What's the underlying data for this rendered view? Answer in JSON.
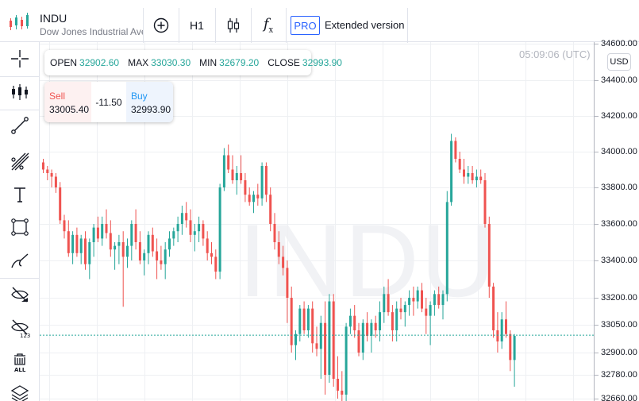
{
  "header": {
    "symbol": "INDU",
    "name": "Dow Jones Industrial Average",
    "timeframe": "H1",
    "pro_badge": "PRO",
    "extended_label": "Extended version",
    "fx_label": "f",
    "fx_sub": "x"
  },
  "ohlc": {
    "open_label": "OPEN",
    "open": "32902.60",
    "max_label": "MAX",
    "max": "33030.30",
    "min_label": "MIN",
    "min": "32679.20",
    "close_label": "CLOSE",
    "close": "32993.90"
  },
  "trade": {
    "sell_label": "Sell",
    "sell_price": "33005.40",
    "spread": "-11.50",
    "buy_label": "Buy",
    "buy_price": "32993.90"
  },
  "clock": "05:09:06 (UTC)",
  "currency": "USD",
  "watermark": "INDU",
  "colors": {
    "up": "#26a69a",
    "down": "#ef5350",
    "accent": "#2962ff"
  },
  "left_tools": [
    "crosshair-icon",
    "indicators-icon",
    "trend-line-icon",
    "fib-icon",
    "text-icon",
    "rectangle-icon",
    "brush-icon",
    "hide-drawings-icon",
    "hide-indicators-icon",
    "delete-all-icon",
    "layers-icon"
  ],
  "chart_data": {
    "type": "candlestick",
    "y_ticks": [
      34600,
      34400,
      34200,
      34000,
      33800,
      33600,
      33400,
      33200,
      33050,
      32900,
      32780,
      32660
    ],
    "y_tick_labels": [
      "34600.00",
      "34400.00",
      "34200.00",
      "34000.00",
      "33800.00",
      "33600.00",
      "33400.00",
      "33200.00",
      "33050.00",
      "32900.00",
      "32780.00",
      "32660.00"
    ],
    "current_price": 32993.9,
    "candles": [
      [
        33940,
        33960,
        33880,
        33900
      ],
      [
        33900,
        33920,
        33840,
        33880
      ],
      [
        33880,
        33900,
        33800,
        33860
      ],
      [
        33860,
        33880,
        33770,
        33800
      ],
      [
        33800,
        33830,
        33600,
        33620
      ],
      [
        33620,
        33650,
        33520,
        33560
      ],
      [
        33560,
        33620,
        33420,
        33440
      ],
      [
        33440,
        33560,
        33380,
        33540
      ],
      [
        33540,
        33580,
        33420,
        33440
      ],
      [
        33440,
        33540,
        33380,
        33520
      ],
      [
        33520,
        33560,
        33350,
        33380
      ],
      [
        33380,
        33520,
        33300,
        33500
      ],
      [
        33500,
        33600,
        33420,
        33580
      ],
      [
        33580,
        33640,
        33500,
        33520
      ],
      [
        33520,
        33640,
        33480,
        33600
      ],
      [
        33600,
        33680,
        33520,
        33550
      ],
      [
        33550,
        33620,
        33420,
        33460
      ],
      [
        33460,
        33500,
        33350,
        33480
      ],
      [
        33480,
        33540,
        33380,
        33500
      ],
      [
        33500,
        33560,
        33150,
        33420
      ],
      [
        33420,
        33520,
        33360,
        33480
      ],
      [
        33480,
        33620,
        33400,
        33600
      ],
      [
        33600,
        33680,
        33460,
        33500
      ],
      [
        33500,
        33560,
        33380,
        33400
      ],
      [
        33400,
        33460,
        33320,
        33440
      ],
      [
        33440,
        33560,
        33380,
        33540
      ],
      [
        33540,
        33580,
        33420,
        33450
      ],
      [
        33450,
        33520,
        33300,
        33400
      ],
      [
        33400,
        33480,
        33350,
        33380
      ],
      [
        33380,
        33500,
        33300,
        33460
      ],
      [
        33460,
        33560,
        33420,
        33520
      ],
      [
        33520,
        33580,
        33480,
        33560
      ],
      [
        33560,
        33640,
        33500,
        33600
      ],
      [
        33600,
        33700,
        33540,
        33660
      ],
      [
        33660,
        33720,
        33580,
        33620
      ],
      [
        33620,
        33680,
        33500,
        33540
      ],
      [
        33540,
        33600,
        33450,
        33560
      ],
      [
        33560,
        33640,
        33500,
        33600
      ],
      [
        33600,
        33620,
        33480,
        33520
      ],
      [
        33520,
        33560,
        33400,
        33440
      ],
      [
        33440,
        33500,
        33380,
        33420
      ],
      [
        33420,
        33460,
        33300,
        33340
      ],
      [
        33340,
        33820,
        33300,
        33800
      ],
      [
        33800,
        34020,
        33780,
        33980
      ],
      [
        33980,
        34040,
        33880,
        33900
      ],
      [
        33900,
        33980,
        33820,
        33840
      ],
      [
        33840,
        33920,
        33760,
        33880
      ],
      [
        33880,
        33980,
        33820,
        33840
      ],
      [
        33840,
        33880,
        33720,
        33760
      ],
      [
        33760,
        33800,
        33700,
        33720
      ],
      [
        33720,
        33780,
        33660,
        33760
      ],
      [
        33760,
        33820,
        33700,
        33740
      ],
      [
        33740,
        33940,
        33700,
        33920
      ],
      [
        33920,
        33940,
        33720,
        33760
      ],
      [
        33760,
        33800,
        33560,
        33600
      ],
      [
        33600,
        33660,
        33460,
        33500
      ],
      [
        33500,
        33560,
        33380,
        33420
      ],
      [
        33420,
        33480,
        33320,
        33360
      ],
      [
        33360,
        33400,
        33060,
        33200
      ],
      [
        33200,
        33260,
        32900,
        32940
      ],
      [
        32940,
        33020,
        32860,
        33000
      ],
      [
        33000,
        33160,
        32960,
        33140
      ],
      [
        33140,
        33180,
        33000,
        33020
      ],
      [
        33020,
        33160,
        32980,
        33140
      ],
      [
        33140,
        33180,
        32900,
        32950
      ],
      [
        32950,
        33040,
        32880,
        32920
      ],
      [
        32920,
        33100,
        32760,
        33060
      ],
      [
        33060,
        33180,
        32680,
        32780
      ],
      [
        32780,
        33220,
        32740,
        33180
      ],
      [
        33180,
        33220,
        32720,
        32760
      ],
      [
        32760,
        32880,
        32660,
        32700
      ],
      [
        32700,
        32800,
        32620,
        32680
      ],
      [
        32680,
        33060,
        32640,
        33040
      ],
      [
        33040,
        33140,
        33000,
        33100
      ],
      [
        33100,
        33160,
        32980,
        33020
      ],
      [
        33020,
        33060,
        32880,
        32900
      ],
      [
        32900,
        33080,
        32860,
        33060
      ],
      [
        33060,
        33120,
        32960,
        32990
      ],
      [
        32990,
        33080,
        32900,
        33060
      ],
      [
        33060,
        33100,
        32980,
        33020
      ],
      [
        33020,
        33180,
        32960,
        33120
      ],
      [
        33120,
        33260,
        33060,
        33220
      ],
      [
        33220,
        33300,
        33100,
        33120
      ],
      [
        33120,
        33160,
        32960,
        33020
      ],
      [
        33020,
        33180,
        32960,
        33140
      ],
      [
        33140,
        33200,
        33080,
        33120
      ],
      [
        33120,
        33180,
        33040,
        33160
      ],
      [
        33160,
        33240,
        33100,
        33200
      ],
      [
        33200,
        33260,
        33100,
        33180
      ],
      [
        33180,
        33260,
        33140,
        33240
      ],
      [
        33240,
        33280,
        33120,
        33140
      ],
      [
        33140,
        33200,
        33000,
        33100
      ],
      [
        33100,
        33180,
        32940,
        33160
      ],
      [
        33160,
        33240,
        33100,
        33220
      ],
      [
        33220,
        33260,
        33140,
        33160
      ],
      [
        33160,
        33240,
        33080,
        33220
      ],
      [
        33220,
        33780,
        33180,
        33720
      ],
      [
        33720,
        34100,
        33700,
        34060
      ],
      [
        34060,
        34080,
        33940,
        33960
      ],
      [
        33960,
        34000,
        33880,
        33900
      ],
      [
        33900,
        33960,
        33820,
        33860
      ],
      [
        33860,
        33920,
        33820,
        33880
      ],
      [
        33880,
        33920,
        33820,
        33840
      ],
      [
        33840,
        33900,
        33800,
        33860
      ],
      [
        33860,
        33900,
        33820,
        33840
      ],
      [
        33840,
        33880,
        33580,
        33600
      ],
      [
        33600,
        33640,
        33200,
        33260
      ],
      [
        33260,
        33280,
        32980,
        33020
      ],
      [
        33020,
        33120,
        32900,
        32960
      ],
      [
        32960,
        33120,
        32920,
        33080
      ],
      [
        33080,
        33180,
        32980,
        33000
      ],
      [
        33000,
        33020,
        32800,
        32860
      ],
      [
        32860,
        33000,
        32720,
        32990
      ]
    ]
  }
}
